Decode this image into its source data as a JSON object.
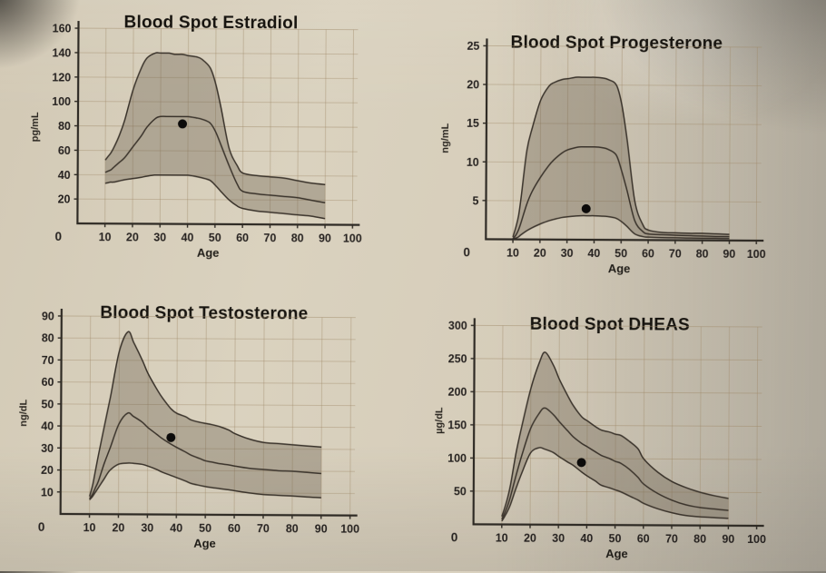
{
  "page": {
    "description": "Photographed printed page with four blood spot hormone reference-range charts"
  },
  "style": {
    "paper_color": "#d6cdba",
    "band_color": "#695e4e",
    "band_opacity": 0.36,
    "line_color": "#3a332b",
    "grid_color": "#9e8767",
    "grid_opacity": 0.45,
    "axis_color": "#2e2a24",
    "text_color": "#262220",
    "dot_color": "#0c0b0a"
  },
  "chart_data": [
    {
      "id": "estradiol",
      "type": "area",
      "title": "Blood Spot Estradiol",
      "xlabel": "Age",
      "ylabel": "pg/mL",
      "origin_label": "0",
      "xlim": [
        0,
        100
      ],
      "ylim": [
        0,
        160
      ],
      "xticks": [
        0,
        10,
        20,
        30,
        40,
        50,
        60,
        70,
        80,
        90,
        100
      ],
      "yticks": [
        20,
        40,
        60,
        80,
        100,
        120,
        140,
        160
      ],
      "grid": true,
      "legend_position": "none",
      "ages": [
        10,
        11,
        12,
        13,
        15,
        17,
        20,
        23,
        25,
        28,
        30,
        33,
        35,
        38,
        40,
        43,
        45,
        48,
        50,
        52,
        55,
        58,
        60,
        65,
        70,
        75,
        80,
        85,
        90
      ],
      "series": [
        {
          "name": "upper-limit",
          "values": [
            52,
            55,
            58,
            62,
            72,
            85,
            110,
            128,
            136,
            140,
            140,
            140,
            139,
            139,
            138,
            137,
            135,
            128,
            115,
            95,
            62,
            48,
            42,
            40,
            39,
            38,
            36,
            34,
            33
          ]
        },
        {
          "name": "median",
          "values": [
            42,
            43,
            44,
            46,
            50,
            54,
            63,
            72,
            79,
            86,
            88,
            88,
            88,
            88,
            88,
            87,
            86,
            83,
            76,
            65,
            48,
            33,
            27,
            25,
            24,
            23,
            22,
            20,
            18
          ]
        },
        {
          "name": "lower-limit",
          "values": [
            33,
            33.5,
            34,
            34,
            35,
            36,
            37,
            38,
            39,
            40,
            40,
            40,
            40,
            40,
            40,
            39,
            38,
            36,
            32,
            27,
            20,
            15,
            13,
            11,
            10,
            9,
            8,
            7,
            5
          ]
        }
      ],
      "patient_point": {
        "age": 38,
        "value": 82
      }
    },
    {
      "id": "progesterone",
      "type": "area",
      "title": "Blood Spot Progesterone",
      "xlabel": "Age",
      "ylabel": "ng/mL",
      "origin_label": "0",
      "xlim": [
        0,
        100
      ],
      "ylim": [
        0,
        25
      ],
      "xticks": [
        0,
        10,
        20,
        30,
        40,
        50,
        60,
        70,
        80,
        90,
        100
      ],
      "yticks": [
        5,
        10,
        15,
        20,
        25
      ],
      "grid": true,
      "legend_position": "none",
      "ages": [
        10,
        11,
        12,
        13,
        15,
        17,
        20,
        23,
        25,
        28,
        30,
        33,
        35,
        38,
        40,
        43,
        45,
        48,
        50,
        52,
        55,
        58,
        60,
        65,
        70,
        75,
        80,
        85,
        90
      ],
      "series": [
        {
          "name": "upper-limit",
          "values": [
            0.3,
            1.5,
            3,
            5.5,
            11.5,
            14.5,
            18,
            19.8,
            20.3,
            20.7,
            20.8,
            21,
            21,
            21,
            21,
            20.9,
            20.7,
            20,
            17.5,
            13,
            5,
            2,
            1.3,
            1,
            0.95,
            0.9,
            0.9,
            0.85,
            0.8
          ]
        },
        {
          "name": "median",
          "values": [
            0.1,
            0.5,
            1.2,
            2.2,
            4.5,
            6.2,
            8,
            9.5,
            10.3,
            11.2,
            11.6,
            11.9,
            12,
            12,
            12,
            11.9,
            11.7,
            11,
            9,
            6.5,
            2.5,
            1.1,
            0.8,
            0.7,
            0.65,
            0.6,
            0.55,
            0.5,
            0.5
          ]
        },
        {
          "name": "lower-limit",
          "values": [
            0.05,
            0.15,
            0.3,
            0.6,
            1.1,
            1.5,
            2,
            2.4,
            2.6,
            2.85,
            2.95,
            3.05,
            3.1,
            3.1,
            3.1,
            3.05,
            3,
            2.8,
            2.4,
            1.8,
            0.8,
            0.45,
            0.38,
            0.32,
            0.3,
            0.28,
            0.27,
            0.26,
            0.25
          ]
        }
      ],
      "patient_point": {
        "age": 37,
        "value": 4
      }
    },
    {
      "id": "testosterone",
      "type": "area",
      "title": "Blood Spot Testosterone",
      "xlabel": "Age",
      "ylabel": "ng/dL",
      "origin_label": "0",
      "xlim": [
        0,
        100
      ],
      "ylim": [
        0,
        90
      ],
      "xticks": [
        0,
        10,
        20,
        30,
        40,
        50,
        60,
        70,
        80,
        90,
        100
      ],
      "yticks": [
        10,
        20,
        30,
        40,
        50,
        60,
        70,
        80,
        90
      ],
      "grid": true,
      "legend_position": "none",
      "ages": [
        10,
        11,
        12,
        13,
        15,
        17,
        20,
        23,
        25,
        28,
        30,
        33,
        35,
        38,
        40,
        43,
        45,
        48,
        50,
        52,
        55,
        58,
        60,
        65,
        70,
        75,
        80,
        85,
        90
      ],
      "series": [
        {
          "name": "upper-limit",
          "values": [
            8,
            13,
            20,
            27,
            40,
            53,
            74,
            83,
            78,
            70,
            64,
            57,
            53,
            48,
            46,
            44.5,
            43,
            42,
            41.5,
            41,
            40,
            38.5,
            37,
            34.5,
            33,
            32.5,
            32,
            31.5,
            31
          ]
        },
        {
          "name": "median",
          "values": [
            7,
            9,
            12,
            15,
            23,
            30,
            41,
            46,
            44.5,
            42,
            39.5,
            36.5,
            34.5,
            32,
            30.5,
            28.5,
            27,
            25.5,
            24.5,
            24,
            23.2,
            22.7,
            22.2,
            21.2,
            20.7,
            20.2,
            20,
            19.5,
            19
          ]
        },
        {
          "name": "lower-limit",
          "values": [
            6.5,
            8,
            10,
            12,
            16,
            20,
            22.8,
            23.3,
            23.2,
            22.8,
            22,
            20.5,
            19.3,
            17.8,
            16.8,
            15.3,
            14.2,
            13.3,
            12.8,
            12.4,
            11.9,
            11.4,
            11,
            10,
            9.3,
            9,
            8.7,
            8.3,
            8
          ]
        }
      ],
      "patient_point": {
        "age": 38,
        "value": 35
      }
    },
    {
      "id": "dheas",
      "type": "area",
      "title": "Blood Spot DHEAS",
      "xlabel": "Age",
      "ylabel": "µg/dL",
      "origin_label": "0",
      "xlim": [
        0,
        100
      ],
      "ylim": [
        0,
        300
      ],
      "xticks": [
        0,
        10,
        20,
        30,
        40,
        50,
        60,
        70,
        80,
        90,
        100
      ],
      "yticks": [
        50,
        100,
        150,
        200,
        250,
        300
      ],
      "grid": true,
      "legend_position": "none",
      "ages": [
        10,
        11,
        12,
        13,
        15,
        17,
        20,
        23,
        25,
        28,
        30,
        33,
        35,
        38,
        40,
        43,
        45,
        48,
        50,
        52,
        55,
        58,
        60,
        65,
        70,
        75,
        80,
        85,
        90
      ],
      "series": [
        {
          "name": "upper-limit",
          "values": [
            12,
            25,
            40,
            60,
            110,
            150,
            205,
            245,
            260,
            240,
            220,
            195,
            180,
            163,
            157,
            148,
            143,
            140,
            137,
            135,
            126,
            115,
            100,
            80,
            66,
            57,
            50,
            45,
            41
          ]
        },
        {
          "name": "median",
          "values": [
            8,
            17,
            28,
            42,
            75,
            105,
            145,
            168,
            176,
            166,
            156,
            142,
            133,
            123,
            118,
            110,
            105,
            100,
            96,
            93,
            84,
            72,
            62,
            48,
            38,
            31,
            27,
            25,
            23
          ]
        },
        {
          "name": "lower-limit",
          "values": [
            5,
            12,
            20,
            30,
            55,
            78,
            108,
            116,
            114,
            109,
            103,
            95,
            90,
            80,
            74,
            66,
            60,
            56,
            53,
            50,
            44,
            38,
            33,
            25,
            19,
            15,
            13,
            12,
            11
          ]
        }
      ],
      "patient_point": {
        "age": 38,
        "value": 94
      }
    }
  ]
}
